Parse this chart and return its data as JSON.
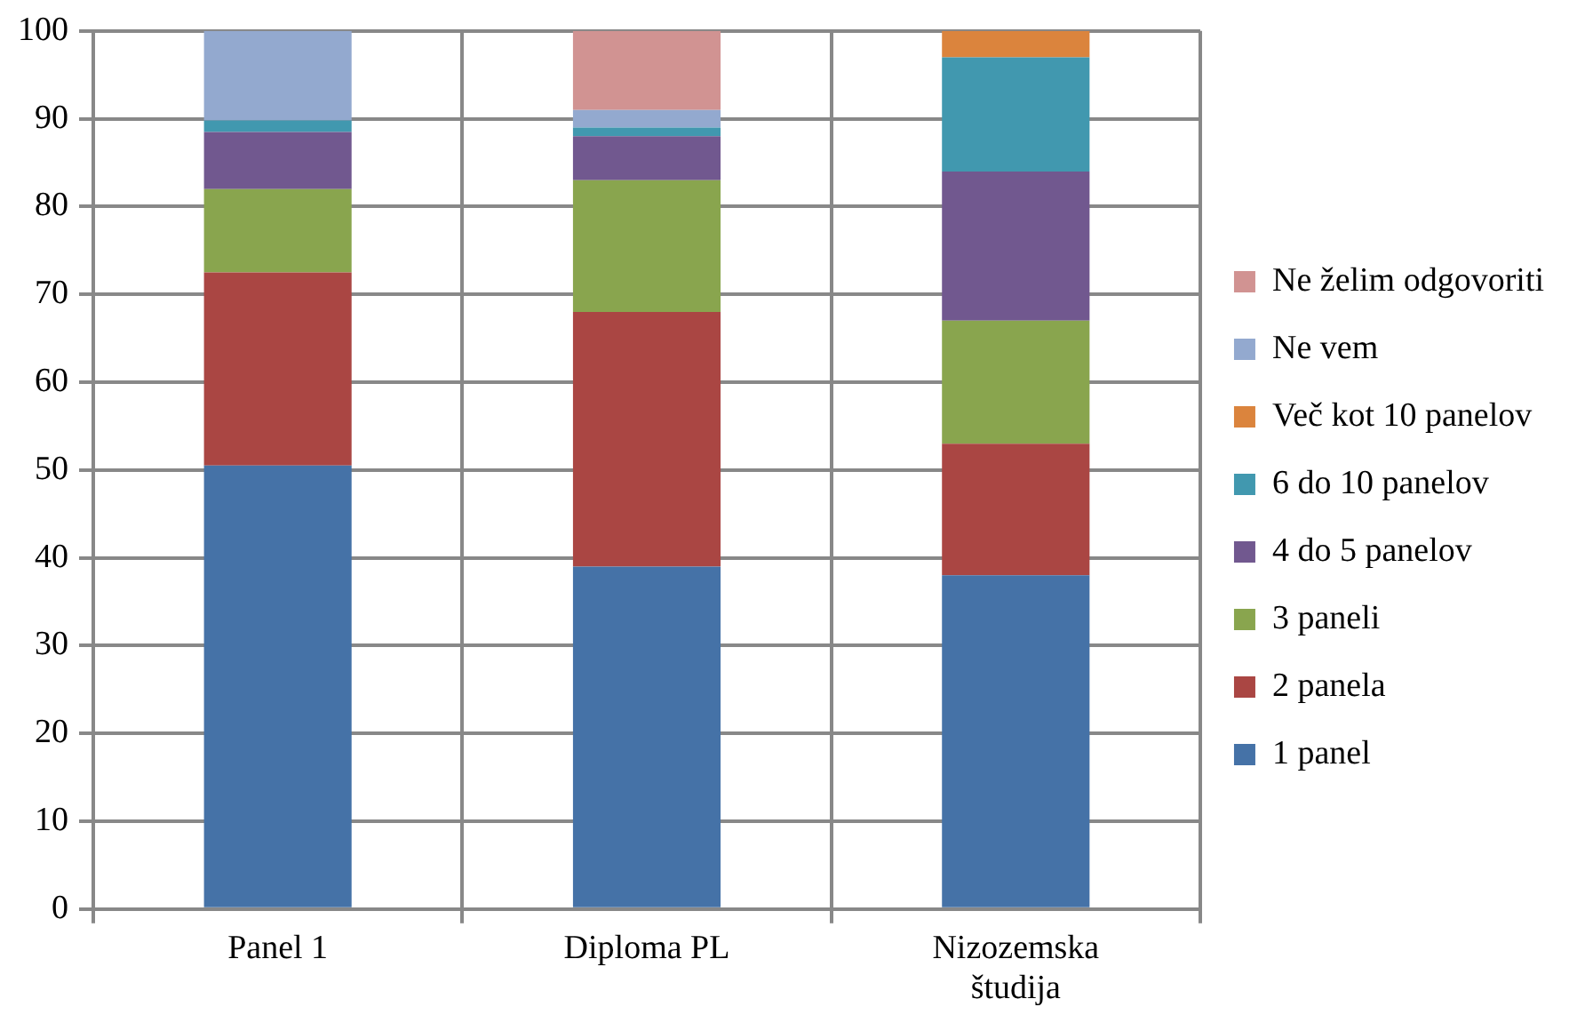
{
  "chart_data": {
    "type": "bar",
    "stacked": true,
    "categories": [
      "Panel 1",
      "Diploma PL",
      "Nizozemska študija"
    ],
    "series": [
      {
        "name": "1 panel",
        "color": "#4572a7",
        "values": [
          50.5,
          39,
          38
        ]
      },
      {
        "name": "2 panela",
        "color": "#aa4643",
        "values": [
          22,
          29,
          15
        ]
      },
      {
        "name": "3 paneli",
        "color": "#89a54e",
        "values": [
          9.5,
          15,
          14
        ]
      },
      {
        "name": "4 do 5 panelov",
        "color": "#71588f",
        "values": [
          6.5,
          5,
          17
        ]
      },
      {
        "name": "6 do 10 panelov",
        "color": "#4198af",
        "values": [
          1.3,
          1,
          13
        ]
      },
      {
        "name": "Več kot 10 panelov",
        "color": "#db843d",
        "values": [
          0,
          0,
          3
        ]
      },
      {
        "name": "Ne vem",
        "color": "#93a9cf",
        "values": [
          10.2,
          2,
          0
        ]
      },
      {
        "name": "Ne želim odgovoriti",
        "color": "#d19392",
        "values": [
          0,
          9,
          0
        ]
      }
    ],
    "ylim": [
      0,
      100
    ],
    "yticks": [
      0,
      10,
      20,
      30,
      40,
      50,
      60,
      70,
      80,
      90,
      100
    ],
    "grid": true,
    "legend": "right"
  }
}
